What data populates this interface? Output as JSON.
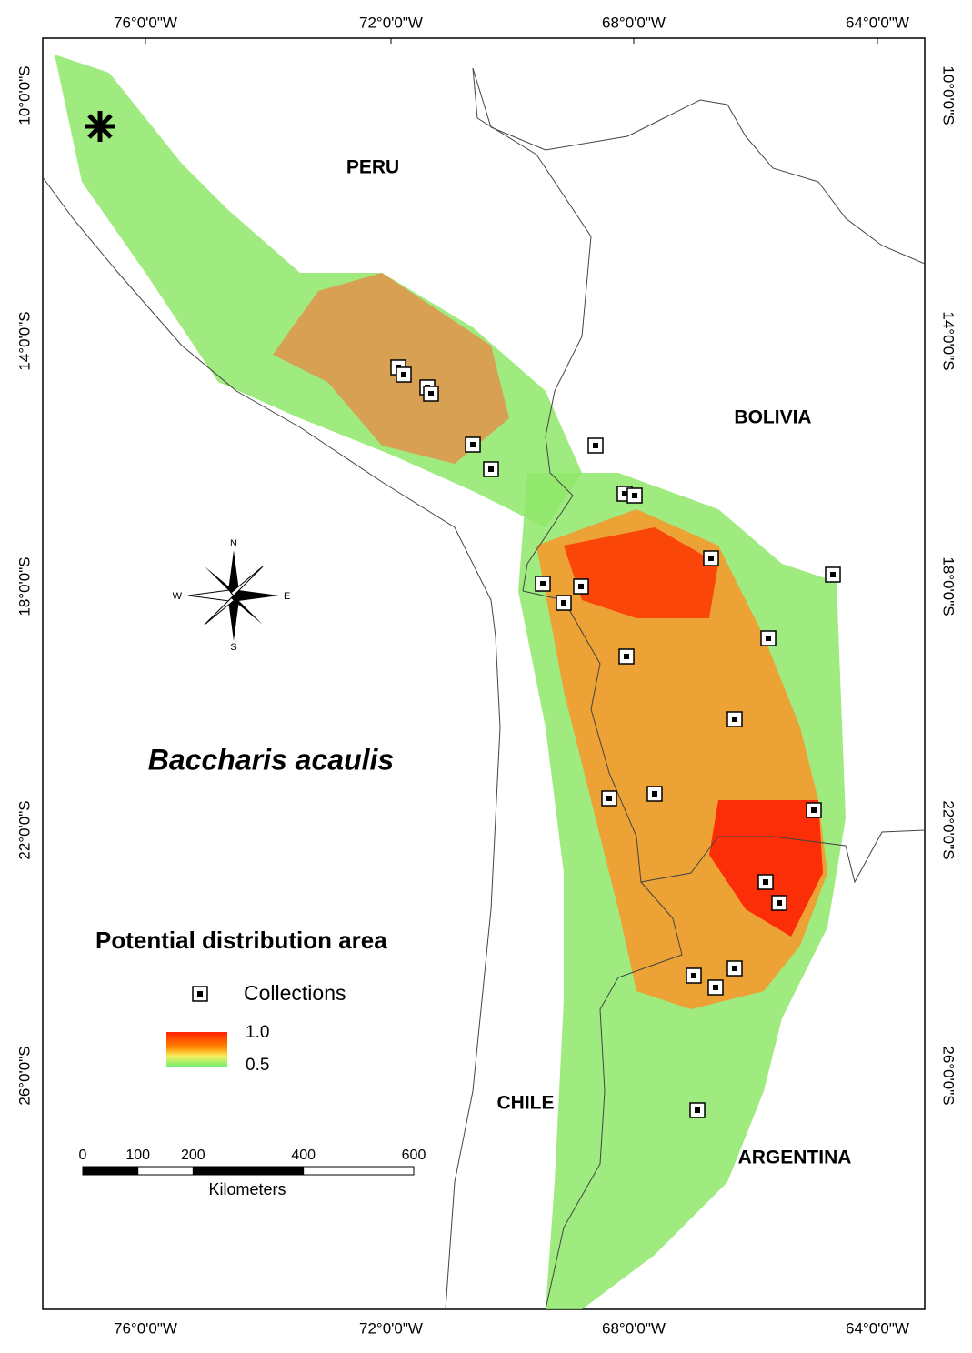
{
  "title": "Baccharis acaulis",
  "graticule": {
    "top": [
      "76°0'0\"W",
      "72°0'0\"W",
      "68°0'0\"W",
      "64°0'0\"W"
    ],
    "bottom": [
      "76°0'0\"W",
      "72°0'0\"W",
      "68°0'0\"W",
      "64°0'0\"W"
    ],
    "left": [
      "10°0'0\"S",
      "14°0'0\"S",
      "18°0'0\"S",
      "22°0'0\"S",
      "26°0'0\"S"
    ],
    "right": [
      "10°0'0\"S",
      "14°0'0\"S",
      "18°0'0\"S",
      "22°0'0\"S",
      "26°0'0\"S"
    ]
  },
  "countries": [
    "PERU",
    "BOLIVIA",
    "CHILE",
    "ARGENTINA"
  ],
  "legend": {
    "title": "Potential distribution area",
    "collections": "Collections",
    "high": "1.0",
    "low": "0.5"
  },
  "scale_bar": {
    "ticks": [
      0,
      100,
      200,
      400,
      600
    ],
    "unit": "Kilometers"
  },
  "compass": {
    "n": "N",
    "s": "S",
    "e": "E",
    "w": "W"
  }
}
